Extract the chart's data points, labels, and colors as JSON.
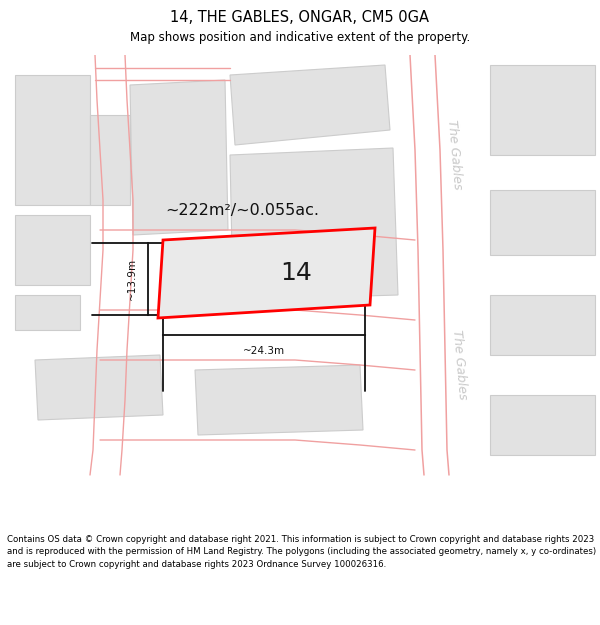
{
  "title": "14, THE GABLES, ONGAR, CM5 0GA",
  "subtitle": "Map shows position and indicative extent of the property.",
  "footer": "Contains OS data © Crown copyright and database right 2021. This information is subject to Crown copyright and database rights 2023 and is reproduced with the permission of HM Land Registry. The polygons (including the associated geometry, namely x, y co-ordinates) are subject to Crown copyright and database rights 2023 Ordnance Survey 100026316.",
  "area_label": "~222m²/~0.055ac.",
  "width_label": "~24.3m",
  "height_label": "~13.9m",
  "plot_number": "14",
  "map_bg": "#f2f2f2",
  "building_fill": "#e2e2e2",
  "building_edge": "#cccccc",
  "property_fill": "#eaeaea",
  "property_edge": "#ff0000",
  "street_color": "#f0a0a0",
  "road_label_color": "#c8c8c8",
  "dim_color": "#111111",
  "title_fontsize": 10.5,
  "subtitle_fontsize": 8.5,
  "footer_fontsize": 6.2,
  "area_fontsize": 11.5,
  "number_fontsize": 18,
  "dim_fontsize": 7.5
}
